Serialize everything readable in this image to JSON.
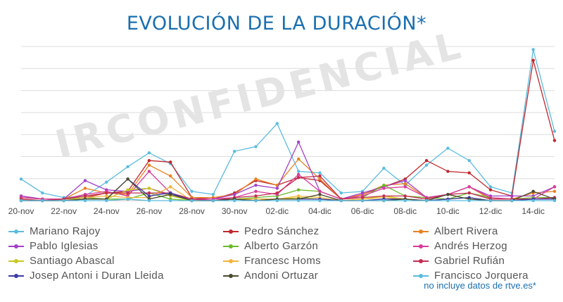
{
  "title": "EVOLUCIÓN DE LA DURACIÓN*",
  "footnote": "no incluye datos de rtve.es*",
  "watermark": "IRCONFIDENCIAL",
  "chart_data": {
    "type": "line",
    "categories": [
      "20-nov",
      "21-nov",
      "22-nov",
      "23-nov",
      "24-nov",
      "25-nov",
      "26-nov",
      "27-nov",
      "28-nov",
      "29-nov",
      "30-nov",
      "01-dic",
      "02-dic",
      "03-dic",
      "04-dic",
      "05-dic",
      "06-dic",
      "07-dic",
      "08-dic",
      "09-dic",
      "10-dic",
      "11-dic",
      "12-dic",
      "13-dic",
      "14-dic",
      "15-dic"
    ],
    "tick_labels": [
      "20-nov",
      "22-nov",
      "24-nov",
      "26-nov",
      "28-nov",
      "30-nov",
      "02-dic",
      "04-dic",
      "06-dic",
      "08-dic",
      "10-dic",
      "12-dic",
      "14-dic"
    ],
    "ylim": [
      0,
      100
    ],
    "grid": true,
    "series": [
      {
        "name": "Mariano Rajoy",
        "color": "#5bbcdf",
        "values": [
          14,
          5,
          2,
          3,
          12,
          22,
          31,
          24,
          6,
          4,
          32,
          35,
          50,
          19,
          18,
          5,
          6,
          21,
          10,
          23,
          34,
          26,
          9,
          5,
          98,
          45
        ]
      },
      {
        "name": "Pedro Sánchez",
        "color": "#c0272d",
        "values": [
          3,
          1,
          1,
          2,
          5,
          6,
          26,
          25,
          2,
          1,
          5,
          13,
          10,
          15,
          13,
          1,
          4,
          9,
          14,
          26,
          19,
          18,
          7,
          3,
          91,
          39
        ]
      },
      {
        "name": "Albert Rivera",
        "color": "#e8821e",
        "values": [
          2,
          1,
          1,
          8,
          5,
          4,
          23,
          16,
          2,
          2,
          4,
          14,
          10,
          27,
          14,
          1,
          4,
          10,
          11,
          2,
          4,
          9,
          1,
          1,
          5,
          6
        ]
      },
      {
        "name": "Pablo Iglesias",
        "color": "#a340c8",
        "values": [
          3,
          1,
          1,
          13,
          7,
          6,
          8,
          4,
          1,
          1,
          4,
          10,
          8,
          38,
          6,
          1,
          5,
          9,
          13,
          2,
          4,
          9,
          3,
          3,
          3,
          9
        ]
      },
      {
        "name": "Alberto Garzón",
        "color": "#6dbb2c",
        "values": [
          1,
          0,
          1,
          2,
          1,
          1,
          5,
          1,
          0,
          0,
          1,
          2,
          3,
          7,
          6,
          1,
          2,
          10,
          3,
          2,
          1,
          5,
          2,
          1,
          2,
          2
        ]
      },
      {
        "name": "Andrés Herzog",
        "color": "#d83a9a",
        "values": [
          2,
          1,
          1,
          4,
          6,
          3,
          19,
          5,
          1,
          1,
          2,
          6,
          4,
          17,
          6,
          1,
          3,
          8,
          9,
          2,
          4,
          9,
          2,
          1,
          1,
          9
        ]
      },
      {
        "name": "Santiago Abascal",
        "color": "#c8c81e",
        "values": [
          0,
          0,
          0,
          1,
          1,
          7,
          8,
          3,
          0,
          0,
          1,
          1,
          1,
          2,
          1,
          0,
          1,
          3,
          1,
          0,
          1,
          2,
          0,
          0,
          1,
          1
        ]
      },
      {
        "name": "Francesc Homs",
        "color": "#f0b43c",
        "values": [
          1,
          0,
          0,
          2,
          3,
          2,
          2,
          9,
          0,
          0,
          1,
          1,
          1,
          3,
          2,
          0,
          1,
          2,
          1,
          0,
          1,
          2,
          0,
          0,
          1,
          1
        ]
      },
      {
        "name": "Gabriel Rufián",
        "color": "#c42d52",
        "values": [
          1,
          0,
          1,
          3,
          5,
          5,
          5,
          5,
          1,
          0,
          2,
          3,
          5,
          15,
          16,
          1,
          2,
          3,
          3,
          1,
          4,
          5,
          1,
          1,
          1,
          2
        ]
      },
      {
        "name": "Josep Antoni i Duran Lleida",
        "color": "#3a3aa8",
        "values": [
          0,
          0,
          0,
          1,
          1,
          14,
          3,
          5,
          0,
          0,
          1,
          0,
          1,
          1,
          1,
          0,
          0,
          1,
          1,
          0,
          1,
          2,
          0,
          0,
          1,
          1
        ]
      },
      {
        "name": "Andoni Ortuzar",
        "color": "#4a4a30",
        "values": [
          0,
          0,
          0,
          1,
          1,
          14,
          1,
          4,
          0,
          0,
          1,
          0,
          1,
          1,
          4,
          0,
          0,
          0,
          1,
          0,
          4,
          1,
          0,
          0,
          6,
          1
        ]
      },
      {
        "name": "Francisco Jorquera",
        "color": "#5bbcdf",
        "values": [
          0,
          0,
          0,
          0,
          0,
          1,
          0,
          0,
          0,
          0,
          0,
          0,
          0,
          0,
          0,
          0,
          0,
          0,
          0,
          0,
          0,
          0,
          0,
          0,
          0,
          0
        ]
      }
    ]
  }
}
